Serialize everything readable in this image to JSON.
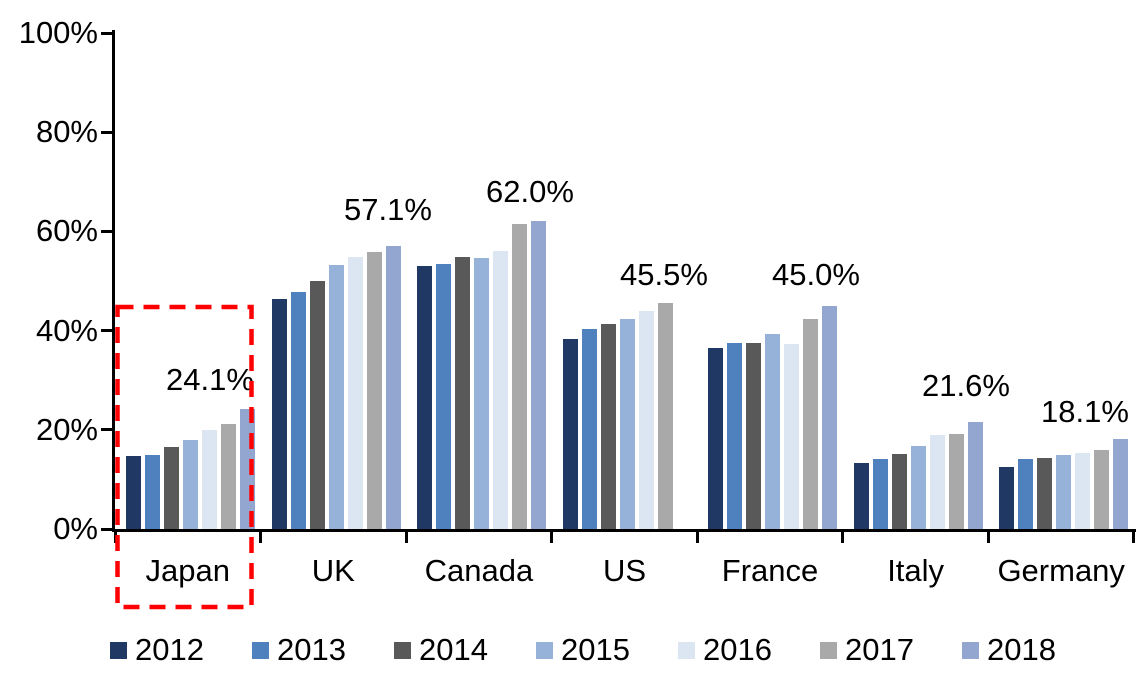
{
  "chart_data": {
    "type": "bar",
    "title": "",
    "xlabel": "",
    "ylabel": "",
    "categories": [
      "Japan",
      "UK",
      "Canada",
      "US",
      "France",
      "Italy",
      "Germany"
    ],
    "series": [
      {
        "name": "2012",
        "color": "#1F3864",
        "values": [
          14.7,
          46.3,
          53.0,
          38.4,
          36.5,
          13.3,
          12.6
        ]
      },
      {
        "name": "2013",
        "color": "#4E81BD",
        "values": [
          14.9,
          47.8,
          53.4,
          40.3,
          37.6,
          14.1,
          14.2
        ]
      },
      {
        "name": "2014",
        "color": "#595959",
        "values": [
          16.6,
          50.0,
          54.8,
          41.3,
          37.6,
          15.2,
          14.4
        ]
      },
      {
        "name": "2015",
        "color": "#97B2D8",
        "values": [
          17.9,
          53.2,
          54.7,
          42.3,
          39.4,
          16.8,
          14.9
        ]
      },
      {
        "name": "2016",
        "color": "#DCE6F2",
        "values": [
          19.9,
          54.8,
          56.1,
          43.9,
          37.3,
          19.0,
          15.4
        ]
      },
      {
        "name": "2017",
        "color": "#A9A9A9",
        "values": [
          21.1,
          55.8,
          61.4,
          45.5,
          42.3,
          19.2,
          15.9
        ]
      },
      {
        "name": "2018",
        "color": "#93A6D0",
        "values": [
          24.1,
          57.1,
          62.0,
          null,
          45.0,
          21.6,
          18.1
        ]
      }
    ],
    "value_labels": [
      {
        "category": "Japan",
        "text": "24.1%"
      },
      {
        "category": "UK",
        "text": "57.1%"
      },
      {
        "category": "Canada",
        "text": "62.0%"
      },
      {
        "category": "US",
        "text": "45.5%"
      },
      {
        "category": "France",
        "text": "45.0%"
      },
      {
        "category": "Italy",
        "text": "21.6%"
      },
      {
        "category": "Germany",
        "text": "18.1%"
      }
    ],
    "y_axis": {
      "min": 0,
      "max": 100,
      "tick_step": 20,
      "tick_labels": [
        "0%",
        "20%",
        "40%",
        "60%",
        "80%",
        "100%"
      ]
    },
    "legend": {
      "position": "bottom",
      "entries": [
        "2012",
        "2013",
        "2014",
        "2015",
        "2016",
        "2017",
        "2018"
      ]
    },
    "grid": false,
    "annotations": {
      "highlight_box": {
        "category": "Japan",
        "style": "dashed",
        "color": "#FF0000"
      }
    }
  }
}
